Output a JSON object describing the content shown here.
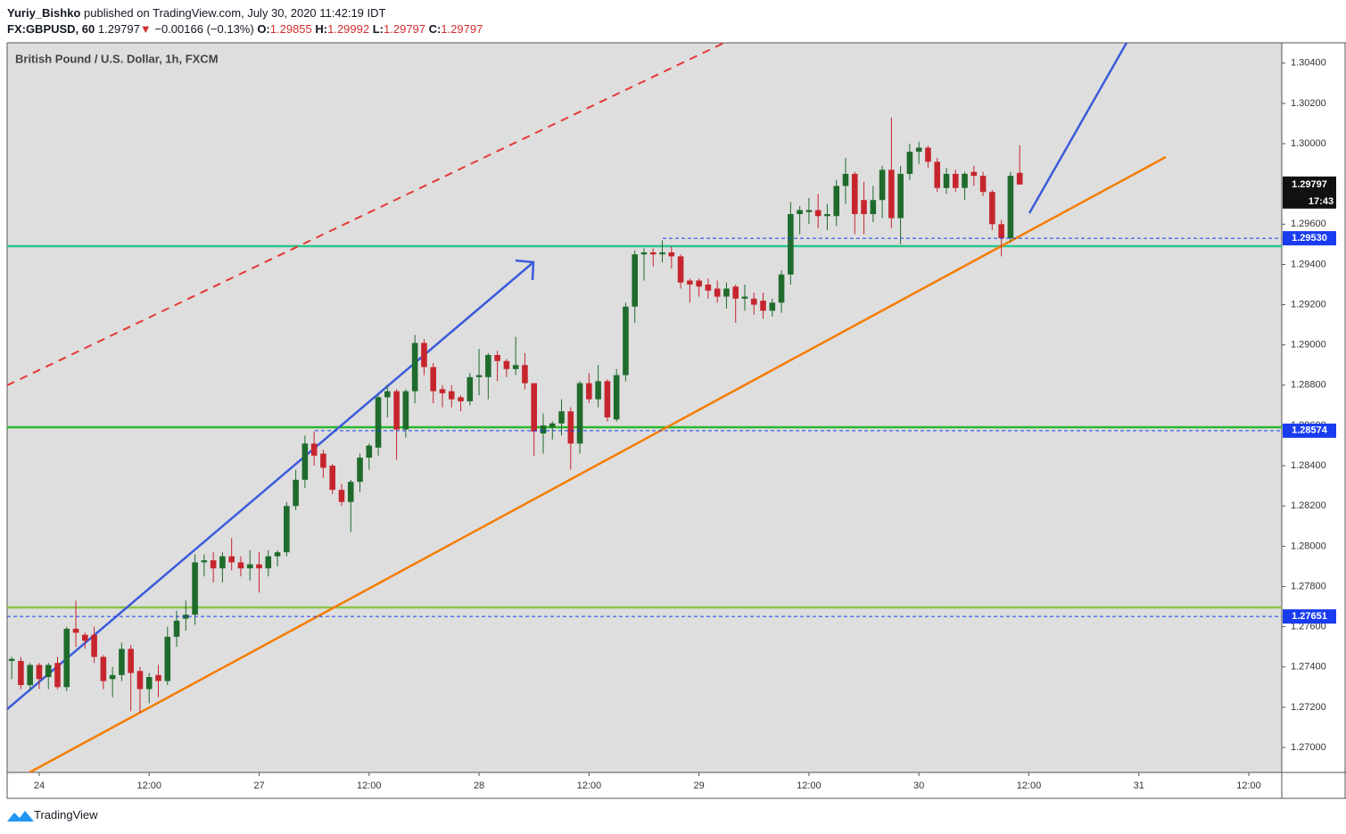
{
  "header": {
    "author": "Yuriy_Bishko",
    "published": "published on TradingView.com, July 30, 2020 11:42:19 IDT",
    "symbol": "FX:GBPUSD, 60",
    "change": "−0.00166 (−0.13%)",
    "o": "O:",
    "h": "H:",
    "l": "L:",
    "c": "C:"
  },
  "footer": {
    "brand": "TradingView"
  },
  "chart_data": {
    "type": "candlestick",
    "title": "British Pound / U.S. Dollar, 1h, FXCM",
    "up_color": "#1f6b2c",
    "down_color": "#c6252d",
    "grid": false,
    "ylim": [
      1.26876,
      1.30501
    ],
    "yticks": [
      {
        "value": 1.27,
        "label": "1.27000"
      },
      {
        "value": 1.272,
        "label": "1.27200"
      },
      {
        "value": 1.274,
        "label": "1.27400"
      },
      {
        "value": 1.276,
        "label": "1.27600"
      },
      {
        "value": 1.278,
        "label": "1.27800"
      },
      {
        "value": 1.28,
        "label": "1.28000"
      },
      {
        "value": 1.282,
        "label": "1.28200"
      },
      {
        "value": 1.284,
        "label": "1.28400"
      },
      {
        "value": 1.286,
        "label": "1.28600"
      },
      {
        "value": 1.288,
        "label": "1.28800"
      },
      {
        "value": 1.29,
        "label": "1.29000"
      },
      {
        "value": 1.292,
        "label": "1.29200"
      },
      {
        "value": 1.294,
        "label": "1.29400"
      },
      {
        "value": 1.296,
        "label": "1.29600"
      },
      {
        "value": 1.298,
        "label": "1.29800"
      },
      {
        "value": 1.3,
        "label": "1.30000"
      },
      {
        "value": 1.302,
        "label": "1.30200"
      },
      {
        "value": 1.304,
        "label": "1.30400"
      }
    ],
    "xlim": [
      -3.5,
      135.6
    ],
    "xticks": [
      {
        "value": 0,
        "label": "24"
      },
      {
        "value": 12,
        "label": "12:00"
      },
      {
        "value": 24,
        "label": "27"
      },
      {
        "value": 36,
        "label": "12:00"
      },
      {
        "value": 48,
        "label": "28"
      },
      {
        "value": 60,
        "label": "12:00"
      },
      {
        "value": 72,
        "label": "29"
      },
      {
        "value": 84,
        "label": "12:00"
      },
      {
        "value": 96,
        "label": "30"
      },
      {
        "value": 108,
        "label": "12:00"
      },
      {
        "value": 120,
        "label": "31"
      },
      {
        "value": 132,
        "label": "12:00"
      }
    ],
    "price_lines": [
      {
        "value": 1.2953,
        "label": "1.29530",
        "color": "#1a3cf0"
      },
      {
        "value": 1.28574,
        "label": "1.28574",
        "color": "#1a3cf0"
      },
      {
        "value": 1.27651,
        "label": "1.27651",
        "color": "#1a3cf0"
      }
    ],
    "last_price": {
      "value": 1.29797,
      "label": "1.29797",
      "countdown": "17:43"
    },
    "x": [
      -3,
      -2,
      -1,
      0,
      1,
      2,
      3,
      4,
      5,
      6,
      7,
      8,
      9,
      10,
      11,
      12,
      13,
      14,
      15,
      16,
      17,
      18,
      19,
      20,
      21,
      22,
      23,
      24,
      25,
      26,
      27,
      28,
      29,
      30,
      31,
      32,
      33,
      34,
      35,
      36,
      37,
      38,
      39,
      40,
      41,
      42,
      43,
      44,
      45,
      46,
      47,
      48,
      49,
      50,
      51,
      52,
      53,
      54,
      55,
      56,
      57,
      58,
      59,
      60,
      61,
      62,
      63,
      64,
      65,
      66,
      67,
      68,
      69,
      70,
      71,
      72,
      73,
      74,
      75,
      76,
      77,
      78,
      79,
      80,
      81,
      82,
      83,
      84,
      85,
      86,
      87,
      88,
      89,
      90,
      91,
      92,
      93,
      94,
      95,
      96,
      97,
      98,
      99,
      100,
      101,
      102,
      103,
      104,
      105,
      106,
      107
    ],
    "ohlc": [
      [
        1.2743,
        1.2745,
        1.2734,
        1.2744
      ],
      [
        1.2743,
        1.2745,
        1.2729,
        1.2731
      ],
      [
        1.2731,
        1.2742,
        1.2728,
        1.2741
      ],
      [
        1.2741,
        1.2742,
        1.2729,
        1.2734
      ],
      [
        1.2735,
        1.2742,
        1.2729,
        1.2741
      ],
      [
        1.2742,
        1.2745,
        1.2729,
        1.273
      ],
      [
        1.273,
        1.276,
        1.2728,
        1.2759
      ],
      [
        1.2759,
        1.2773,
        1.275,
        1.2757
      ],
      [
        1.2756,
        1.2757,
        1.2749,
        1.2753
      ],
      [
        1.2756,
        1.276,
        1.2742,
        1.2745
      ],
      [
        1.2745,
        1.2746,
        1.2729,
        1.2733
      ],
      [
        1.2734,
        1.274,
        1.2725,
        1.2736
      ],
      [
        1.2736,
        1.2752,
        1.2733,
        1.2749
      ],
      [
        1.2749,
        1.2751,
        1.2718,
        1.2737
      ],
      [
        1.2738,
        1.274,
        1.2717,
        1.2729
      ],
      [
        1.2729,
        1.2737,
        1.2722,
        1.2735
      ],
      [
        1.2736,
        1.2741,
        1.2725,
        1.2733
      ],
      [
        1.2733,
        1.276,
        1.2731,
        1.2755
      ],
      [
        1.2755,
        1.2768,
        1.275,
        1.2763
      ],
      [
        1.2764,
        1.2773,
        1.2758,
        1.2766
      ],
      [
        1.2766,
        1.2796,
        1.2761,
        1.2792
      ],
      [
        1.2792,
        1.2796,
        1.2785,
        1.2793
      ],
      [
        1.2793,
        1.2797,
        1.2782,
        1.2789
      ],
      [
        1.2789,
        1.2797,
        1.2782,
        1.2795
      ],
      [
        1.2795,
        1.2804,
        1.2788,
        1.2792
      ],
      [
        1.2792,
        1.2795,
        1.2785,
        1.2789
      ],
      [
        1.2789,
        1.2798,
        1.2783,
        1.2791
      ],
      [
        1.2791,
        1.2797,
        1.2777,
        1.2789
      ],
      [
        1.2789,
        1.2798,
        1.2785,
        1.2795
      ],
      [
        1.2795,
        1.2798,
        1.279,
        1.2797
      ],
      [
        1.2797,
        1.2822,
        1.2795,
        1.282
      ],
      [
        1.282,
        1.2838,
        1.2818,
        1.2833
      ],
      [
        1.2833,
        1.2855,
        1.2829,
        1.2851
      ],
      [
        1.2851,
        1.2857,
        1.284,
        1.2845
      ],
      [
        1.2846,
        1.2848,
        1.2834,
        1.2839
      ],
      [
        1.284,
        1.2841,
        1.2826,
        1.2828
      ],
      [
        1.2828,
        1.2831,
        1.282,
        1.2822
      ],
      [
        1.2822,
        1.2833,
        1.2807,
        1.2832
      ],
      [
        1.2832,
        1.2846,
        1.2827,
        1.2844
      ],
      [
        1.2844,
        1.2851,
        1.2838,
        1.285
      ],
      [
        1.2849,
        1.2875,
        1.2845,
        1.2874
      ],
      [
        1.2874,
        1.288,
        1.2864,
        1.2877
      ],
      [
        1.2877,
        1.2878,
        1.2843,
        1.2858
      ],
      [
        1.2858,
        1.2878,
        1.2854,
        1.2877
      ],
      [
        1.2877,
        1.2905,
        1.2871,
        1.2901
      ],
      [
        1.2901,
        1.2903,
        1.2885,
        1.2889
      ],
      [
        1.2889,
        1.2891,
        1.2871,
        1.2877
      ],
      [
        1.2878,
        1.288,
        1.2869,
        1.2876
      ],
      [
        1.2877,
        1.288,
        1.2869,
        1.2873
      ],
      [
        1.2874,
        1.2875,
        1.2867,
        1.2872
      ],
      [
        1.2872,
        1.2886,
        1.287,
        1.2884
      ],
      [
        1.2884,
        1.2898,
        1.2875,
        1.2885
      ],
      [
        1.2884,
        1.2896,
        1.2873,
        1.2895
      ],
      [
        1.2895,
        1.2897,
        1.2882,
        1.2892
      ],
      [
        1.2892,
        1.2893,
        1.2884,
        1.2888
      ],
      [
        1.2888,
        1.2904,
        1.2885,
        1.289
      ],
      [
        1.289,
        1.2896,
        1.2878,
        1.2881
      ],
      [
        1.2881,
        1.2881,
        1.2845,
        1.2857
      ],
      [
        1.2856,
        1.2866,
        1.2846,
        1.286
      ],
      [
        1.2859,
        1.2862,
        1.2853,
        1.2861
      ],
      [
        1.2861,
        1.2873,
        1.2855,
        1.2867
      ],
      [
        1.2867,
        1.2869,
        1.2838,
        1.2851
      ],
      [
        1.2851,
        1.2882,
        1.2846,
        1.2881
      ],
      [
        1.2881,
        1.2886,
        1.2871,
        1.2873
      ],
      [
        1.2873,
        1.289,
        1.2869,
        1.2882
      ],
      [
        1.2882,
        1.2883,
        1.2862,
        1.2864
      ],
      [
        1.2863,
        1.2888,
        1.2862,
        1.2885
      ],
      [
        1.2885,
        1.2921,
        1.2882,
        1.2919
      ],
      [
        1.2919,
        1.2947,
        1.2911,
        1.2945
      ],
      [
        1.2945,
        1.2948,
        1.2932,
        1.2946
      ],
      [
        1.2946,
        1.2948,
        1.2939,
        1.2945
      ],
      [
        1.2945,
        1.2952,
        1.2941,
        1.2946
      ],
      [
        1.2946,
        1.2949,
        1.2938,
        1.2944
      ],
      [
        1.2944,
        1.2945,
        1.2928,
        1.2931
      ],
      [
        1.2932,
        1.2933,
        1.2921,
        1.293
      ],
      [
        1.2932,
        1.2933,
        1.2924,
        1.2929
      ],
      [
        1.293,
        1.2933,
        1.2923,
        1.2927
      ],
      [
        1.2928,
        1.2932,
        1.2921,
        1.2924
      ],
      [
        1.2924,
        1.2931,
        1.2918,
        1.2928
      ],
      [
        1.2929,
        1.293,
        1.2911,
        1.2923
      ],
      [
        1.2923,
        1.293,
        1.2917,
        1.2924
      ],
      [
        1.2923,
        1.2926,
        1.2915,
        1.292
      ],
      [
        1.2922,
        1.2926,
        1.2913,
        1.2917
      ],
      [
        1.2917,
        1.2923,
        1.2914,
        1.2921
      ],
      [
        1.2921,
        1.2937,
        1.2916,
        1.2935
      ],
      [
        1.2935,
        1.2971,
        1.293,
        1.2965
      ],
      [
        1.2965,
        1.2969,
        1.2955,
        1.2967
      ],
      [
        1.2966,
        1.2973,
        1.296,
        1.2967
      ],
      [
        1.2967,
        1.2975,
        1.2958,
        1.2964
      ],
      [
        1.2964,
        1.297,
        1.2957,
        1.2965
      ],
      [
        1.2964,
        1.2982,
        1.2959,
        1.2979
      ],
      [
        1.2979,
        1.2993,
        1.297,
        1.2985
      ],
      [
        1.2985,
        1.2986,
        1.2955,
        1.2965
      ],
      [
        1.2972,
        1.2981,
        1.2955,
        1.2965
      ],
      [
        1.2965,
        1.2979,
        1.2961,
        1.2972
      ],
      [
        1.2972,
        1.2989,
        1.2963,
        1.2987
      ],
      [
        1.2987,
        1.3013,
        1.2958,
        1.2963
      ],
      [
        1.2963,
        1.2989,
        1.295,
        1.2985
      ],
      [
        1.2985,
        1.3,
        1.2982,
        1.2996
      ],
      [
        1.2996,
        1.3001,
        1.299,
        1.2998
      ],
      [
        1.2998,
        1.2999,
        1.2988,
        1.2991
      ],
      [
        1.2991,
        1.2993,
        1.2976,
        1.2978
      ],
      [
        1.2978,
        1.2988,
        1.2975,
        1.2985
      ],
      [
        1.2985,
        1.2987,
        1.2976,
        1.2978
      ],
      [
        1.2978,
        1.2986,
        1.2972,
        1.2985
      ],
      [
        1.2986,
        1.2989,
        1.2979,
        1.2984
      ],
      [
        1.2984,
        1.2986,
        1.2974,
        1.2976
      ],
      [
        1.2976,
        1.2977,
        1.2957,
        1.296
      ],
      [
        1.296,
        1.2962,
        1.2944,
        1.2953
      ],
      [
        1.2953,
        1.2986,
        1.2951,
        1.2984
      ],
      [
        1.29855,
        1.29992,
        1.29797,
        1.29797
      ]
    ]
  }
}
